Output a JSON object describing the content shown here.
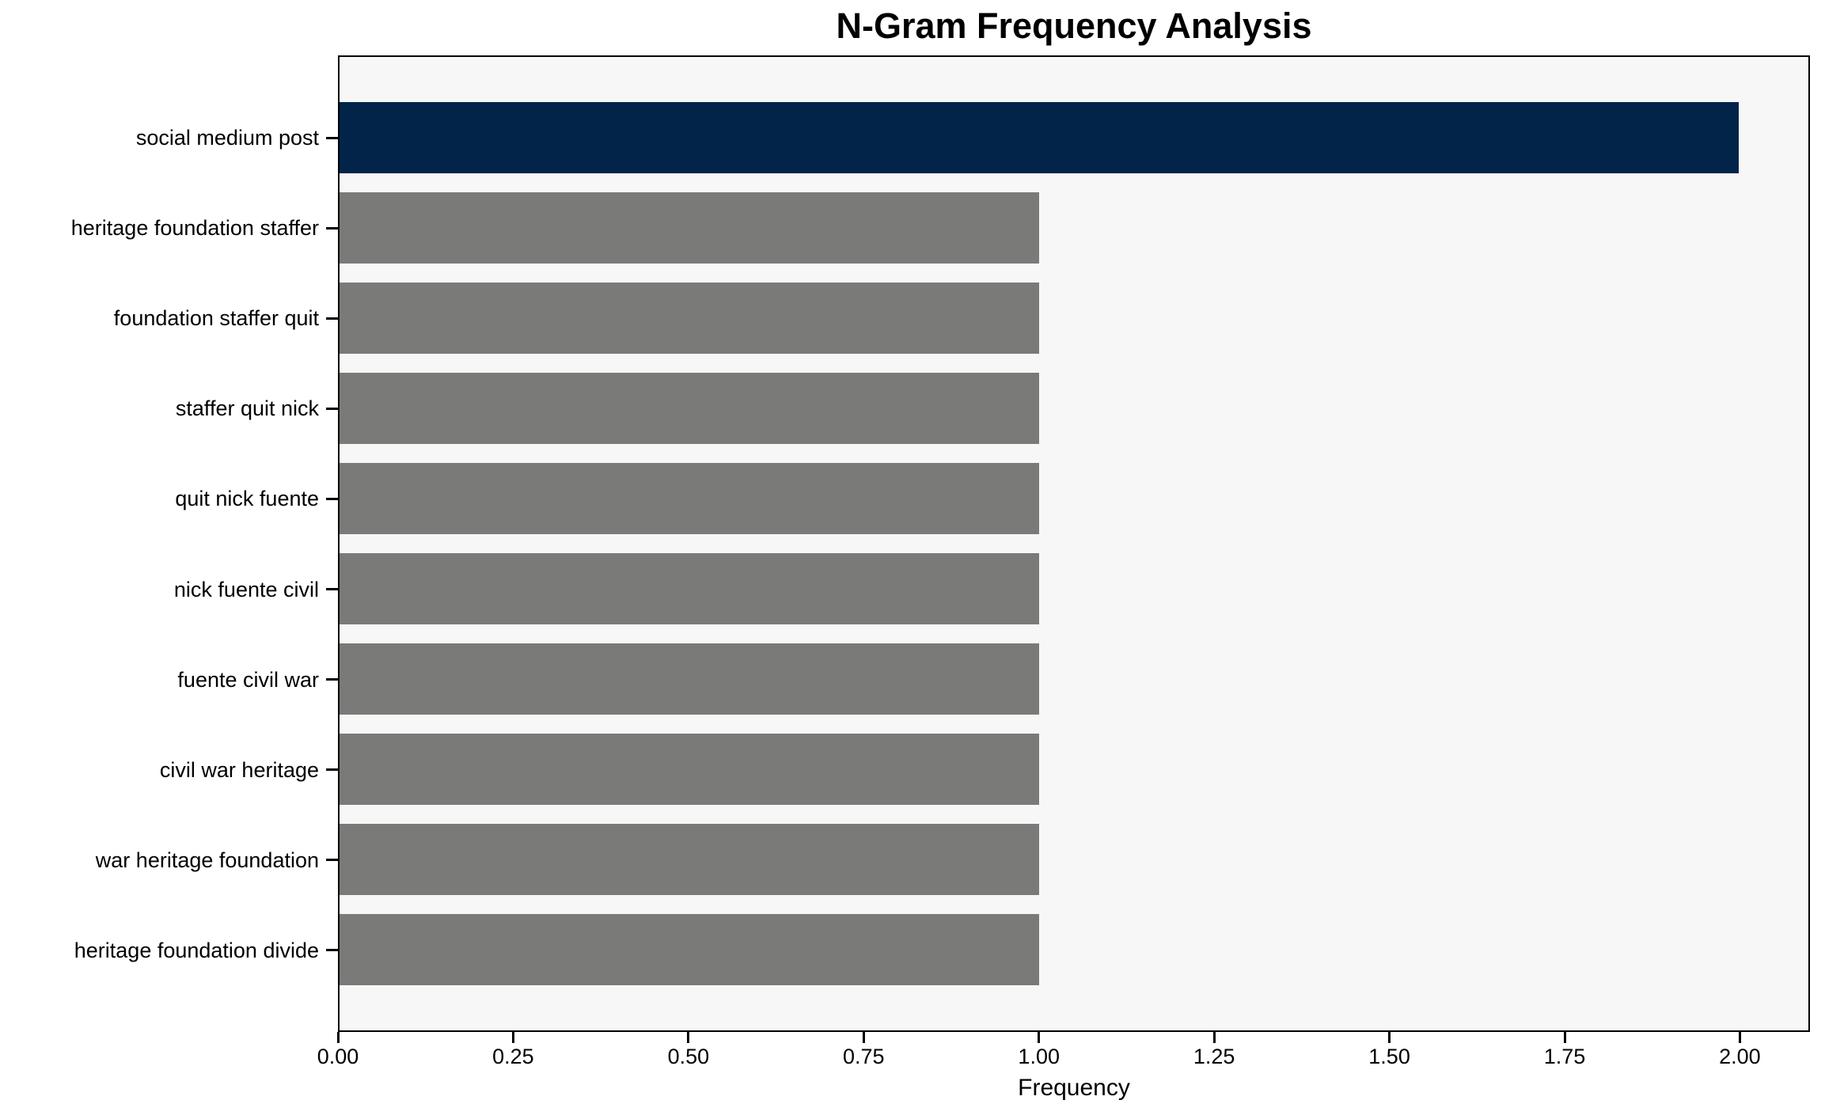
{
  "chart_data": {
    "type": "bar",
    "orientation": "horizontal",
    "title": "N-Gram Frequency Analysis",
    "xlabel": "Frequency",
    "ylabel": "",
    "categories": [
      "social medium post",
      "heritage foundation staffer",
      "foundation staffer quit",
      "staffer quit nick",
      "quit nick fuente",
      "nick fuente civil",
      "fuente civil war",
      "civil war heritage",
      "war heritage foundation",
      "heritage foundation divide"
    ],
    "values": [
      2,
      1,
      1,
      1,
      1,
      1,
      1,
      1,
      1,
      1
    ],
    "bar_colors": [
      "#032449",
      "#7a7a78",
      "#7a7a78",
      "#7a7a78",
      "#7a7a78",
      "#7a7a78",
      "#7a7a78",
      "#7a7a78",
      "#7a7a78",
      "#7a7a78"
    ],
    "xlim": [
      0,
      2.1
    ],
    "xtick_labels": [
      "0.00",
      "0.25",
      "0.50",
      "0.75",
      "1.00",
      "1.25",
      "1.50",
      "1.75",
      "2.00"
    ],
    "xtick_values": [
      0,
      0.25,
      0.5,
      0.75,
      1.0,
      1.25,
      1.5,
      1.75,
      2.0
    ],
    "grid": false,
    "legend": null,
    "colors": {
      "highlight_bar": "#032449",
      "default_bar": "#7a7a78",
      "plot_background": "#f7f7f7",
      "figure_background": "#ffffff",
      "axis": "#000000",
      "text": "#000000"
    }
  }
}
